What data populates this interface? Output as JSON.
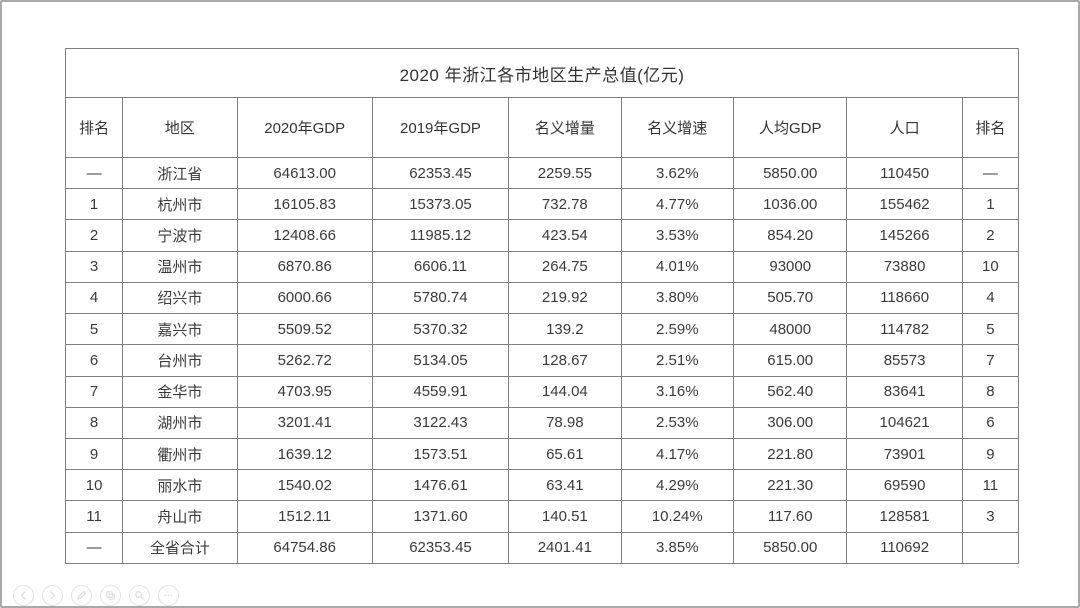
{
  "chart_data": {
    "type": "table",
    "title": "2020 年浙江各市地区生产总值(亿元)",
    "columns": [
      "排名",
      "地区",
      "2020年GDP",
      "2019年GDP",
      "名义增量",
      "名义增速",
      "人均GDP",
      "人口",
      "排名"
    ],
    "rows": [
      [
        "—",
        "浙江省",
        "64613.00",
        "62353.45",
        "2259.55",
        "3.62%",
        "5850.00",
        "110450",
        "—"
      ],
      [
        "1",
        "杭州市",
        "16105.83",
        "15373.05",
        "732.78",
        "4.77%",
        "1036.00",
        "155462",
        "1"
      ],
      [
        "2",
        "宁波市",
        "12408.66",
        "11985.12",
        "423.54",
        "3.53%",
        "854.20",
        "145266",
        "2"
      ],
      [
        "3",
        "温州市",
        "6870.86",
        "6606.11",
        "264.75",
        "4.01%",
        "93000",
        "73880",
        "10"
      ],
      [
        "4",
        "绍兴市",
        "6000.66",
        "5780.74",
        "219.92",
        "3.80%",
        "505.70",
        "118660",
        "4"
      ],
      [
        "5",
        "嘉兴市",
        "5509.52",
        "5370.32",
        "139.2",
        "2.59%",
        "48000",
        "114782",
        "5"
      ],
      [
        "6",
        "台州市",
        "5262.72",
        "5134.05",
        "128.67",
        "2.51%",
        "615.00",
        "85573",
        "7"
      ],
      [
        "7",
        "金华市",
        "4703.95",
        "4559.91",
        "144.04",
        "3.16%",
        "562.40",
        "83641",
        "8"
      ],
      [
        "8",
        "湖州市",
        "3201.41",
        "3122.43",
        "78.98",
        "2.53%",
        "306.00",
        "104621",
        "6"
      ],
      [
        "9",
        "衢州市",
        "1639.12",
        "1573.51",
        "65.61",
        "4.17%",
        "221.80",
        "73901",
        "9"
      ],
      [
        "10",
        "丽水市",
        "1540.02",
        "1476.61",
        "63.41",
        "4.29%",
        "221.30",
        "69590",
        "11"
      ],
      [
        "11",
        "舟山市",
        "1512.11",
        "1371.60",
        "140.51",
        "10.24%",
        "117.60",
        "128581",
        "3"
      ],
      [
        "—",
        "全省合计",
        "64754.86",
        "62353.45",
        "2401.41",
        "3.85%",
        "5850.00",
        "110692",
        ""
      ]
    ],
    "column_widths_pct": [
      6.0,
      12.0,
      14.2,
      14.3,
      11.8,
      11.8,
      11.9,
      12.1,
      5.9
    ],
    "layout": {
      "grid": true,
      "border_color": "#7f7f7f",
      "text_color": "#3a3a3a"
    }
  },
  "toolbar": {
    "icons": [
      "back",
      "forward",
      "edit",
      "copy",
      "search",
      "more"
    ]
  }
}
